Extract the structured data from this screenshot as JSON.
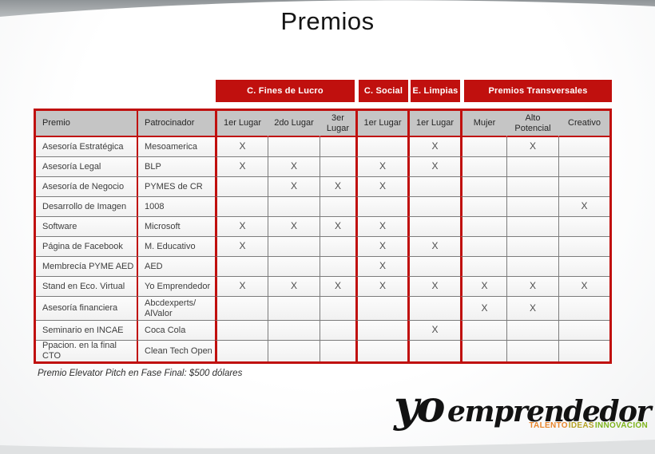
{
  "slide": {
    "title": "Premios",
    "footnote": "Premio Elevator Pitch en Fase Final: $500 dólares"
  },
  "banners": [
    {
      "label": "C. Fines de Lucro"
    },
    {
      "label": "C. Social"
    },
    {
      "label": "E. Limpias"
    },
    {
      "label": "Premios Transversales"
    }
  ],
  "table": {
    "headers": [
      "Premio",
      "Patrocinador",
      "1er Lugar",
      "2do Lugar",
      "3er Lugar",
      "1er Lugar",
      "1er Lugar",
      "Mujer",
      "Alto Potencial",
      "Creativo"
    ],
    "rows": [
      {
        "premio": "Asesoría Estratégica",
        "patrocinador": "Mesoamerica",
        "marks": [
          "X",
          "",
          "",
          "",
          "X",
          "",
          "X",
          ""
        ]
      },
      {
        "premio": "Asesoría Legal",
        "patrocinador": "BLP",
        "marks": [
          "X",
          "X",
          "",
          "X",
          "X",
          "",
          "",
          ""
        ]
      },
      {
        "premio": "Asesoría de Negocio",
        "patrocinador": "PYMES de CR",
        "marks": [
          "",
          "X",
          "X",
          "X",
          "",
          "",
          "",
          ""
        ]
      },
      {
        "premio": "Desarrollo de Imagen",
        "patrocinador": "1008",
        "marks": [
          "",
          "",
          "",
          "",
          "",
          "",
          "",
          "X"
        ]
      },
      {
        "premio": "Software",
        "patrocinador": "Microsoft",
        "marks": [
          "X",
          "X",
          "X",
          "X",
          "",
          "",
          "",
          ""
        ]
      },
      {
        "premio": "Página de Facebook",
        "patrocinador": "M. Educativo",
        "marks": [
          "X",
          "",
          "",
          "X",
          "X",
          "",
          "",
          ""
        ]
      },
      {
        "premio": "Membrecía PYME AED",
        "patrocinador": "AED",
        "marks": [
          "",
          "",
          "",
          "X",
          "",
          "",
          "",
          ""
        ]
      },
      {
        "premio": "Stand en Eco. Virtual",
        "patrocinador": "Yo Emprendedor",
        "marks": [
          "X",
          "X",
          "X",
          "X",
          "X",
          "X",
          "X",
          "X"
        ]
      },
      {
        "premio": "Asesoría financiera",
        "patrocinador": "Abcdexperts/ AlValor",
        "marks": [
          "",
          "",
          "",
          "",
          "",
          "X",
          "X",
          ""
        ]
      },
      {
        "premio": "Seminario en INCAE",
        "patrocinador": "Coca Cola",
        "marks": [
          "",
          "",
          "",
          "",
          "X",
          "",
          "",
          ""
        ]
      },
      {
        "premio": "Ppacion. en la final CTO",
        "patrocinador": "Clean Tech Open",
        "marks": [
          "",
          "",
          "",
          "",
          "",
          "",
          "",
          ""
        ]
      }
    ]
  },
  "logo": {
    "yo": "yo",
    "name": "emprendedor",
    "tagline": [
      {
        "text": "TALENTO",
        "color": "#E8862C"
      },
      {
        "text": "IDEAS",
        "color": "#B5A224"
      },
      {
        "text": "INNOVACIÓN",
        "color": "#7FB41C"
      }
    ]
  },
  "colors": {
    "accent_red": "#C0100E",
    "header_gray": "#C5C5C5"
  }
}
